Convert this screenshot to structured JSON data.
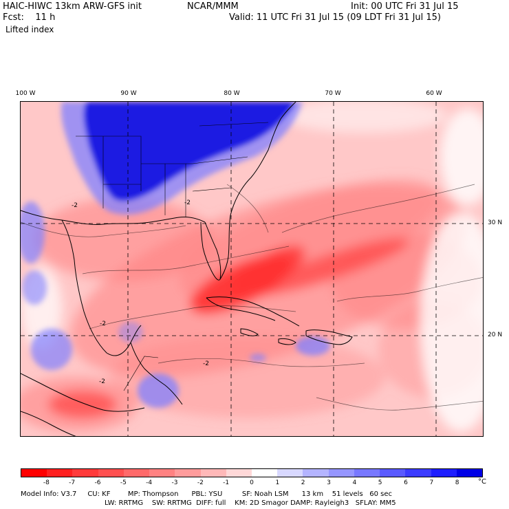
{
  "header": {
    "model_title": "HAIC-HIWC 13km ARW-GFS init",
    "center": "NCAR/MMM",
    "init": "Init: 00 UTC Fri 31 Jul 15",
    "fcst": "Fcst:    11 h",
    "valid": "Valid: 11 UTC Fri 31 Jul 15 (09 LDT Fri 31 Jul 15)",
    "field": "Lifted index"
  },
  "map": {
    "longitude_labels": [
      "100 W",
      "90 W",
      "80 W",
      "70 W",
      "60 W"
    ],
    "latitude_labels": [
      "30 N",
      "20 N"
    ],
    "contour_labels": [
      "-2",
      "-2",
      "-2",
      "-2",
      "-2"
    ],
    "colors": {
      "strong_negative": "#ff3030",
      "negative": "#ff8080",
      "weak_negative": "#ffc8c8",
      "near_zero": "#ffffff",
      "positive": "#8080ff",
      "strong_positive": "#1010e0"
    }
  },
  "colorbar": {
    "labels": [
      "-8",
      "-7",
      "-6",
      "-5",
      "-4",
      "-3",
      "-2",
      "-1",
      "0",
      "1",
      "2",
      "3",
      "4",
      "5",
      "6",
      "7",
      "8"
    ],
    "unit": "°C",
    "colors": [
      "#ff0000",
      "#ff2020",
      "#ff3a3a",
      "#ff5050",
      "#ff6a6a",
      "#ff8282",
      "#ff9c9c",
      "#ffb8b8",
      "#ffd8d8",
      "#ffffff",
      "#d8d8ff",
      "#b4b4ff",
      "#9696ff",
      "#7878ff",
      "#5a5aff",
      "#3c3cff",
      "#1e1eff",
      "#0000e6"
    ]
  },
  "footer": {
    "line1": "Model Info: V3.7     CU: KF        MP: Thompson      PBL: YSU         SF: Noah LSM      13 km    51 levels   60 sec",
    "line2": "LW: RRTMG    SW: RRTMG  DIFF: full    KM: 2D Smagor DAMP: Rayleigh3   SFLAY: MM5"
  }
}
